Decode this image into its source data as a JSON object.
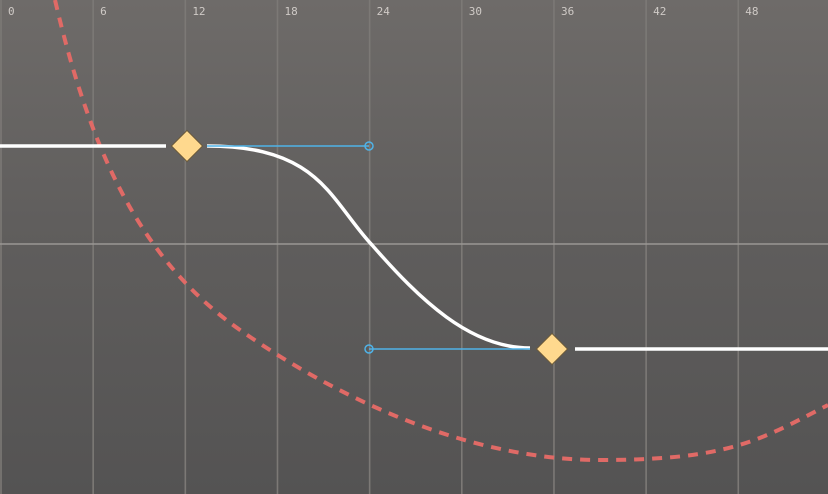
{
  "timeline": {
    "ruler_ticks": [
      0,
      6,
      12,
      18,
      24,
      30,
      36,
      42,
      48
    ]
  },
  "colors": {
    "curve": "#ffffff",
    "keyframe_fill": "#ffd98e",
    "keyframe_outline": "#6b5a3a",
    "tangent_handle": "#4fb3e8",
    "reference_curve": "#e06a66"
  },
  "curve": {
    "name": "",
    "keyframes": [
      {
        "frame": 12,
        "value": 1
      },
      {
        "frame": 36,
        "value": -1
      }
    ],
    "value_range": [
      -2.5,
      2.5
    ],
    "frame_range": [
      0,
      54
    ]
  }
}
